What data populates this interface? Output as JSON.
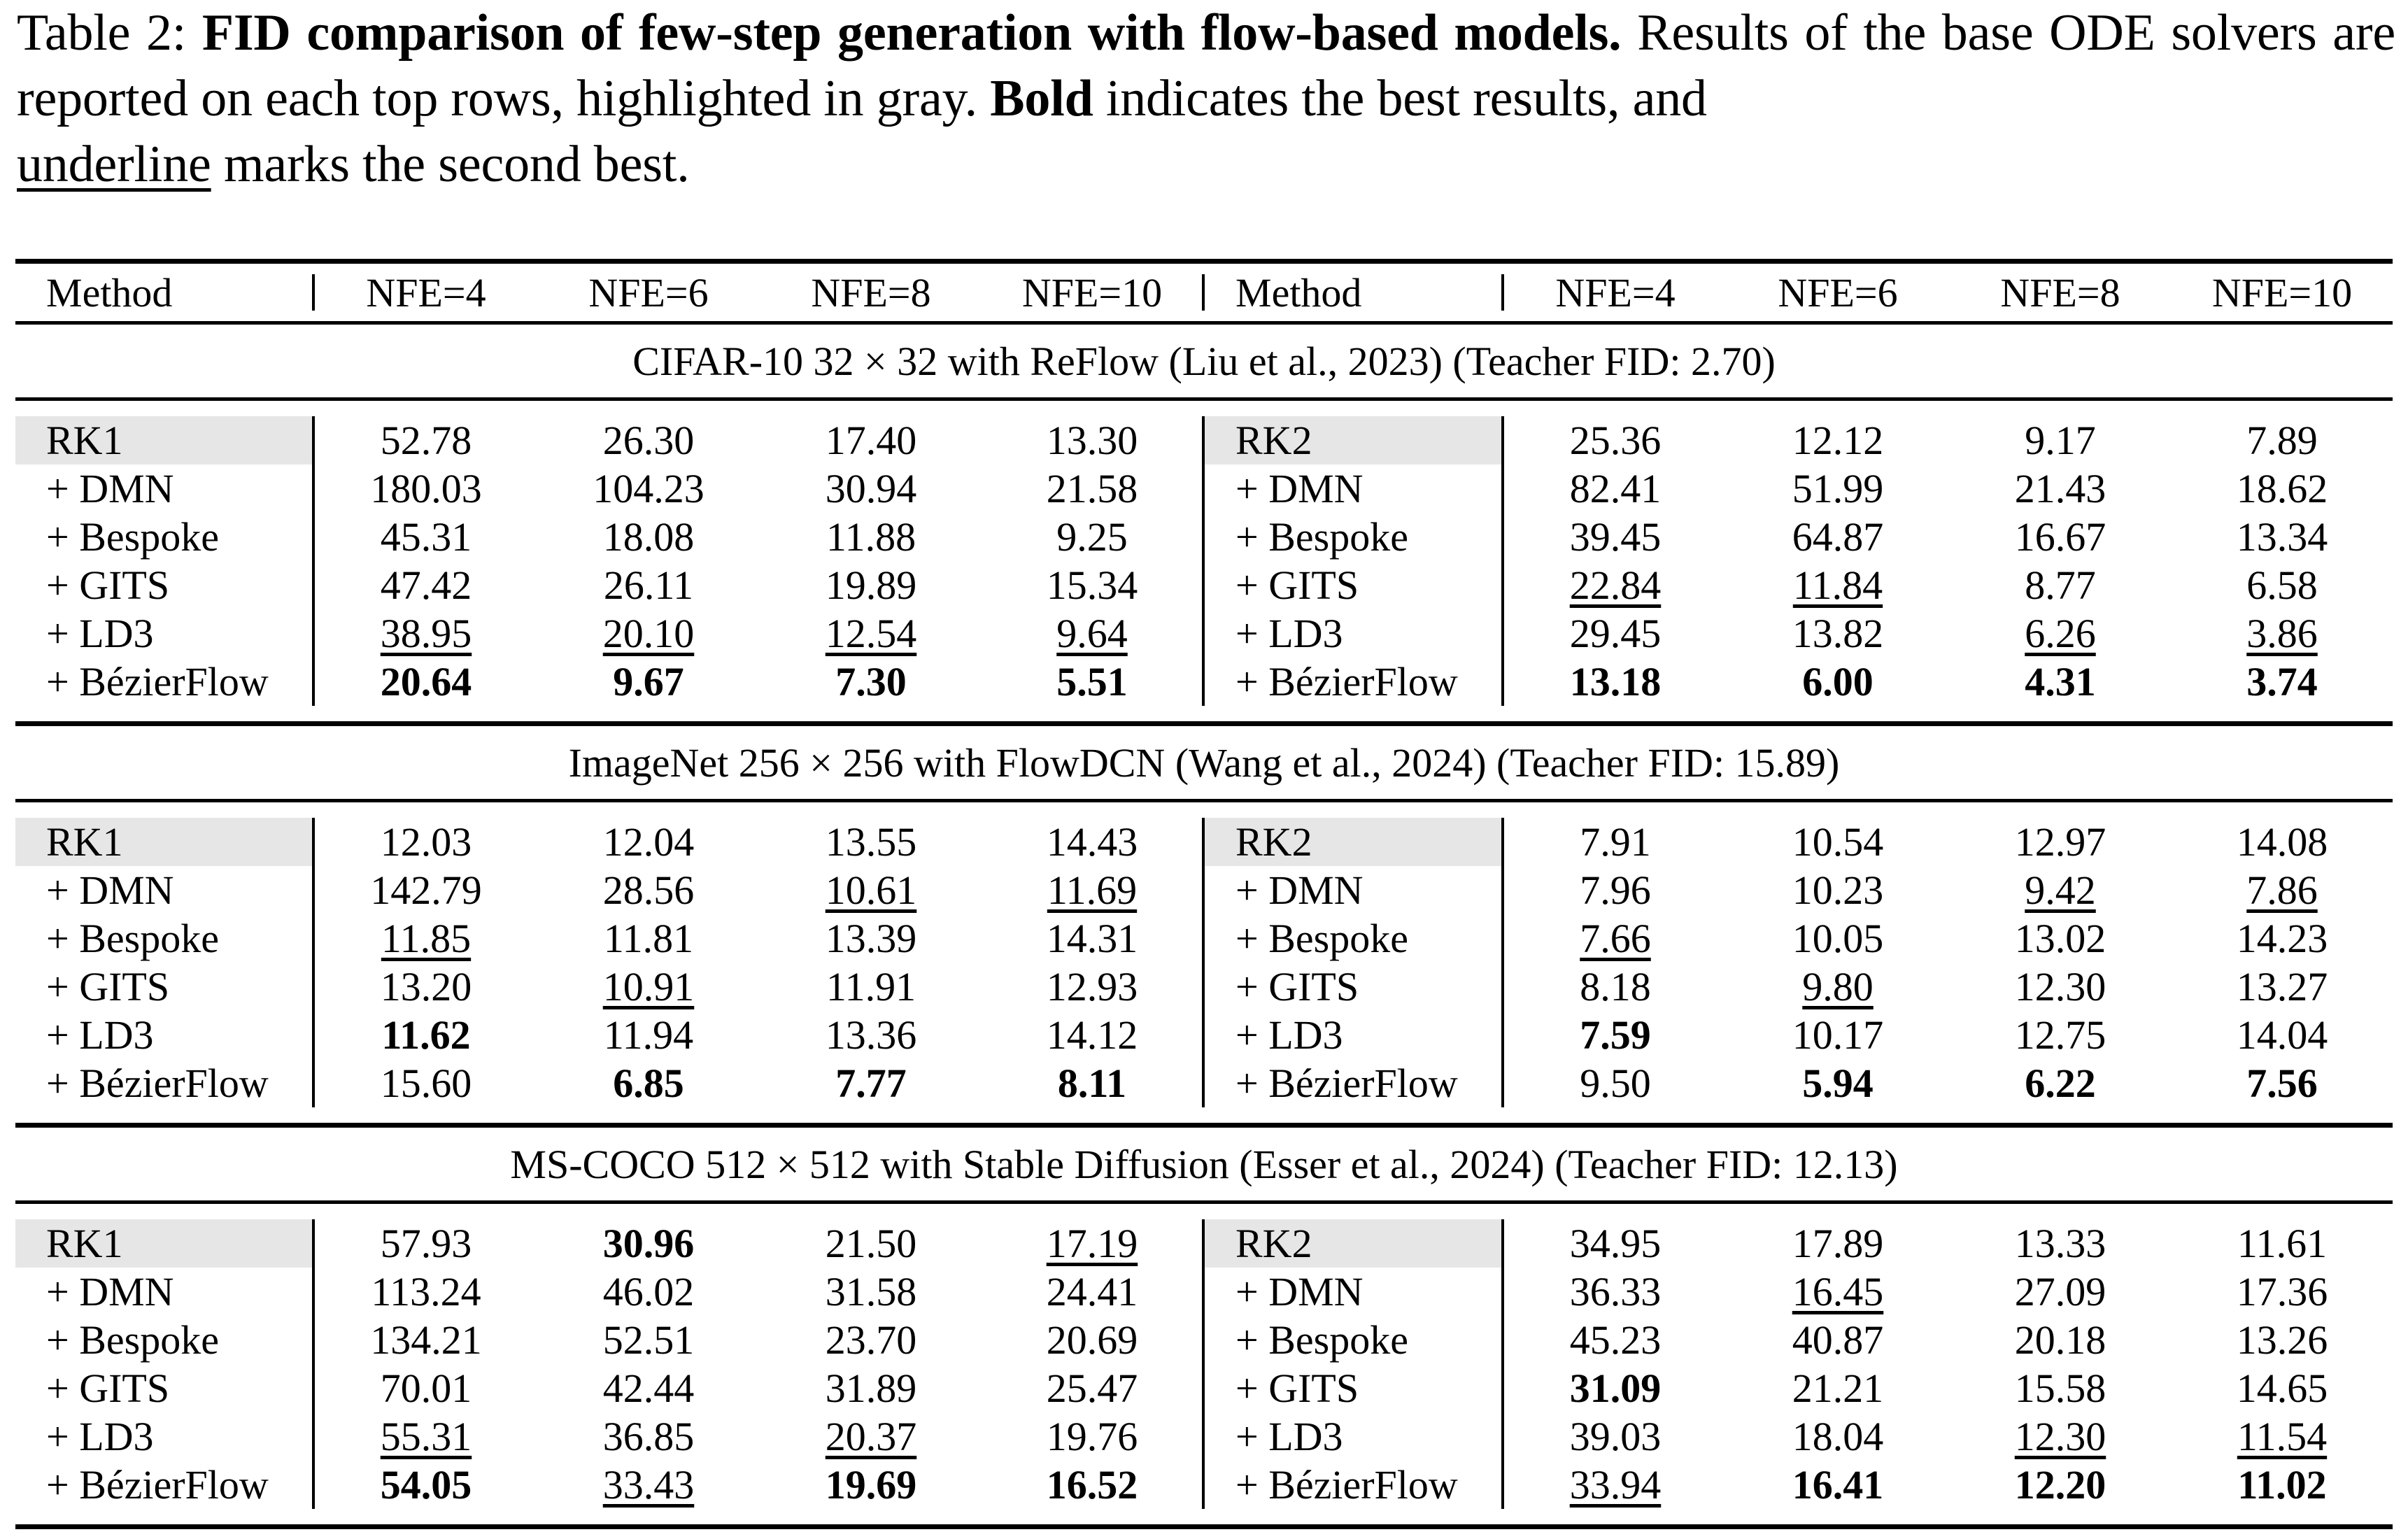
{
  "caption": {
    "label": "Table 2:",
    "title": "FID comparison of few-step generation with flow-based models.",
    "text_1": "Results of the base ODE solvers are reported on each top rows, highlighted in gray.",
    "bold_word": "Bold",
    "text_2": "indicates the best results, and",
    "underline_word": "underline",
    "text_3": "marks the second best."
  },
  "header": {
    "left": [
      "Method",
      "NFE=4",
      "NFE=6",
      "NFE=8",
      "NFE=10"
    ],
    "right": [
      "Method",
      "NFE=4",
      "NFE=6",
      "NFE=8",
      "NFE=10"
    ]
  },
  "colors": {
    "base_highlight": "#e6e6e6",
    "rule": "#000000"
  },
  "sections": [
    {
      "title": "CIFAR-10 32 × 32 with ReFlow (Liu et al., 2023) (Teacher FID: 2.70)",
      "left_base": "RK1",
      "right_base": "RK2",
      "rows": [
        {
          "left": {
            "method": "RK1",
            "v": [
              "52.78",
              "26.30",
              "17.40",
              "13.30"
            ],
            "s": [
              "",
              "",
              "",
              ""
            ]
          },
          "right": {
            "method": "RK2",
            "v": [
              "25.36",
              "12.12",
              "9.17",
              "7.89"
            ],
            "s": [
              "",
              "",
              "",
              ""
            ]
          }
        },
        {
          "left": {
            "method": "+ DMN",
            "v": [
              "180.03",
              "104.23",
              "30.94",
              "21.58"
            ],
            "s": [
              "",
              "",
              "",
              ""
            ]
          },
          "right": {
            "method": "+ DMN",
            "v": [
              "82.41",
              "51.99",
              "21.43",
              "18.62"
            ],
            "s": [
              "",
              "",
              "",
              ""
            ]
          }
        },
        {
          "left": {
            "method": "+ Bespoke",
            "v": [
              "45.31",
              "18.08",
              "11.88",
              "9.25"
            ],
            "s": [
              "",
              "",
              "",
              ""
            ]
          },
          "right": {
            "method": "+ Bespoke",
            "v": [
              "39.45",
              "64.87",
              "16.67",
              "13.34"
            ],
            "s": [
              "",
              "",
              "",
              ""
            ]
          }
        },
        {
          "left": {
            "method": "+ GITS",
            "v": [
              "47.42",
              "26.11",
              "19.89",
              "15.34"
            ],
            "s": [
              "",
              "",
              "",
              ""
            ]
          },
          "right": {
            "method": "+ GITS",
            "v": [
              "22.84",
              "11.84",
              "8.77",
              "6.58"
            ],
            "s": [
              "ul",
              "ul",
              "",
              ""
            ]
          }
        },
        {
          "left": {
            "method": "+ LD3",
            "v": [
              "38.95",
              "20.10",
              "12.54",
              "9.64"
            ],
            "s": [
              "ul",
              "ul",
              "ul",
              "ul"
            ]
          },
          "right": {
            "method": "+ LD3",
            "v": [
              "29.45",
              "13.82",
              "6.26",
              "3.86"
            ],
            "s": [
              "",
              "",
              "ul",
              "ul"
            ]
          }
        },
        {
          "left": {
            "method": "+ BézierFlow",
            "v": [
              "20.64",
              "9.67",
              "7.30",
              "5.51"
            ],
            "s": [
              "bold",
              "bold",
              "bold",
              "bold"
            ]
          },
          "right": {
            "method": "+ BézierFlow",
            "v": [
              "13.18",
              "6.00",
              "4.31",
              "3.74"
            ],
            "s": [
              "bold",
              "bold",
              "bold",
              "bold"
            ]
          }
        }
      ]
    },
    {
      "title": "ImageNet 256 × 256 with FlowDCN (Wang et al., 2024) (Teacher FID: 15.89)",
      "left_base": "RK1",
      "right_base": "RK2",
      "rows": [
        {
          "left": {
            "method": "RK1",
            "v": [
              "12.03",
              "12.04",
              "13.55",
              "14.43"
            ],
            "s": [
              "",
              "",
              "",
              ""
            ]
          },
          "right": {
            "method": "RK2",
            "v": [
              "7.91",
              "10.54",
              "12.97",
              "14.08"
            ],
            "s": [
              "",
              "",
              "",
              ""
            ]
          }
        },
        {
          "left": {
            "method": "+ DMN",
            "v": [
              "142.79",
              "28.56",
              "10.61",
              "11.69"
            ],
            "s": [
              "",
              "",
              "ul",
              "ul"
            ]
          },
          "right": {
            "method": "+ DMN",
            "v": [
              "7.96",
              "10.23",
              "9.42",
              "7.86"
            ],
            "s": [
              "",
              "",
              "ul",
              "ul"
            ]
          }
        },
        {
          "left": {
            "method": "+ Bespoke",
            "v": [
              "11.85",
              "11.81",
              "13.39",
              "14.31"
            ],
            "s": [
              "ul",
              "",
              "",
              ""
            ]
          },
          "right": {
            "method": "+ Bespoke",
            "v": [
              "7.66",
              "10.05",
              "13.02",
              "14.23"
            ],
            "s": [
              "ul",
              "",
              "",
              ""
            ]
          }
        },
        {
          "left": {
            "method": "+ GITS",
            "v": [
              "13.20",
              "10.91",
              "11.91",
              "12.93"
            ],
            "s": [
              "",
              "ul",
              "",
              ""
            ]
          },
          "right": {
            "method": "+ GITS",
            "v": [
              "8.18",
              "9.80",
              "12.30",
              "13.27"
            ],
            "s": [
              "",
              "ul",
              "",
              ""
            ]
          }
        },
        {
          "left": {
            "method": "+ LD3",
            "v": [
              "11.62",
              "11.94",
              "13.36",
              "14.12"
            ],
            "s": [
              "bold",
              "",
              "",
              ""
            ]
          },
          "right": {
            "method": "+ LD3",
            "v": [
              "7.59",
              "10.17",
              "12.75",
              "14.04"
            ],
            "s": [
              "bold",
              "",
              "",
              ""
            ]
          }
        },
        {
          "left": {
            "method": "+ BézierFlow",
            "v": [
              "15.60",
              "6.85",
              "7.77",
              "8.11"
            ],
            "s": [
              "",
              "bold",
              "bold",
              "bold"
            ]
          },
          "right": {
            "method": "+ BézierFlow",
            "v": [
              "9.50",
              "5.94",
              "6.22",
              "7.56"
            ],
            "s": [
              "",
              "bold",
              "bold",
              "bold"
            ]
          }
        }
      ]
    },
    {
      "title": "MS-COCO 512 × 512 with Stable Diffusion (Esser et al., 2024) (Teacher FID: 12.13)",
      "left_base": "RK1",
      "right_base": "RK2",
      "rows": [
        {
          "left": {
            "method": "RK1",
            "v": [
              "57.93",
              "30.96",
              "21.50",
              "17.19"
            ],
            "s": [
              "",
              "bold",
              "",
              "ul"
            ]
          },
          "right": {
            "method": "RK2",
            "v": [
              "34.95",
              "17.89",
              "13.33",
              "11.61"
            ],
            "s": [
              "",
              "",
              "",
              ""
            ]
          }
        },
        {
          "left": {
            "method": "+ DMN",
            "v": [
              "113.24",
              "46.02",
              "31.58",
              "24.41"
            ],
            "s": [
              "",
              "",
              "",
              ""
            ]
          },
          "right": {
            "method": "+ DMN",
            "v": [
              "36.33",
              "16.45",
              "27.09",
              "17.36"
            ],
            "s": [
              "",
              "ul",
              "",
              ""
            ]
          }
        },
        {
          "left": {
            "method": "+ Bespoke",
            "v": [
              "134.21",
              "52.51",
              "23.70",
              "20.69"
            ],
            "s": [
              "",
              "",
              "",
              ""
            ]
          },
          "right": {
            "method": "+ Bespoke",
            "v": [
              "45.23",
              "40.87",
              "20.18",
              "13.26"
            ],
            "s": [
              "",
              "",
              "",
              ""
            ]
          }
        },
        {
          "left": {
            "method": "+ GITS",
            "v": [
              "70.01",
              "42.44",
              "31.89",
              "25.47"
            ],
            "s": [
              "",
              "",
              "",
              ""
            ]
          },
          "right": {
            "method": "+ GITS",
            "v": [
              "31.09",
              "21.21",
              "15.58",
              "14.65"
            ],
            "s": [
              "bold",
              "",
              "",
              ""
            ]
          }
        },
        {
          "left": {
            "method": "+ LD3",
            "v": [
              "55.31",
              "36.85",
              "20.37",
              "19.76"
            ],
            "s": [
              "ul",
              "",
              "ul",
              ""
            ]
          },
          "right": {
            "method": "+ LD3",
            "v": [
              "39.03",
              "18.04",
              "12.30",
              "11.54"
            ],
            "s": [
              "",
              "",
              "ul",
              "ul"
            ]
          }
        },
        {
          "left": {
            "method": "+ BézierFlow",
            "v": [
              "54.05",
              "33.43",
              "19.69",
              "16.52"
            ],
            "s": [
              "bold",
              "ul",
              "bold",
              "bold"
            ]
          },
          "right": {
            "method": "+ BézierFlow",
            "v": [
              "33.94",
              "16.41",
              "12.20",
              "11.02"
            ],
            "s": [
              "ul",
              "bold",
              "bold",
              "bold"
            ]
          }
        }
      ]
    }
  ]
}
